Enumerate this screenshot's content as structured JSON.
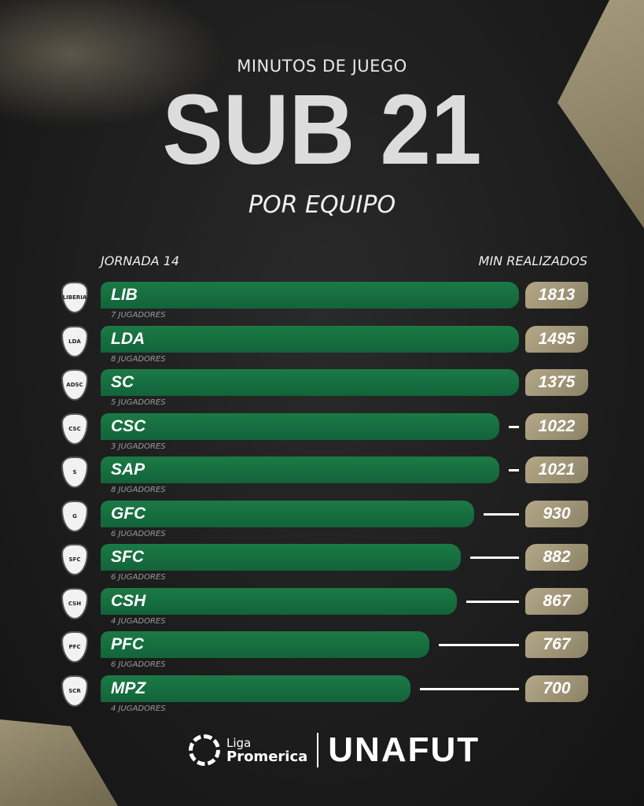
{
  "header": {
    "kicker": "MINUTOS DE JUEGO",
    "title": "SUB 21",
    "subtitle": "POR EQUIPO"
  },
  "chart_data": {
    "type": "bar",
    "orientation": "horizontal",
    "left_label": "JORNADA 14",
    "right_label": "MIN REALIZADOS",
    "categories": [
      "LIB",
      "LDA",
      "SC",
      "CSC",
      "SAP",
      "GFC",
      "SFC",
      "CSH",
      "PFC",
      "MPZ"
    ],
    "values": [
      1813,
      1495,
      1375,
      1022,
      1021,
      930,
      882,
      867,
      767,
      700
    ],
    "players": [
      "7 JUGADORES",
      "8 JUGADORES",
      "5 JUGADORES",
      "3 JUGADORES",
      "8 JUGADORES",
      "6 JUGADORES",
      "6 JUGADORES",
      "4 JUGADORES",
      "6 JUGADORES",
      "4 JUGADORES"
    ],
    "bar_color": "#1b7a45",
    "value_badge_color": "#a89c7e"
  },
  "logos": [
    "LIBERIA",
    "LDA",
    "ADSC",
    "CSC",
    "S",
    "G",
    "SFC",
    "CSH",
    "PFC",
    "SCR"
  ],
  "footer": {
    "liga": "Liga",
    "promerica": "Promerica",
    "unafut": "UNAFUT"
  }
}
